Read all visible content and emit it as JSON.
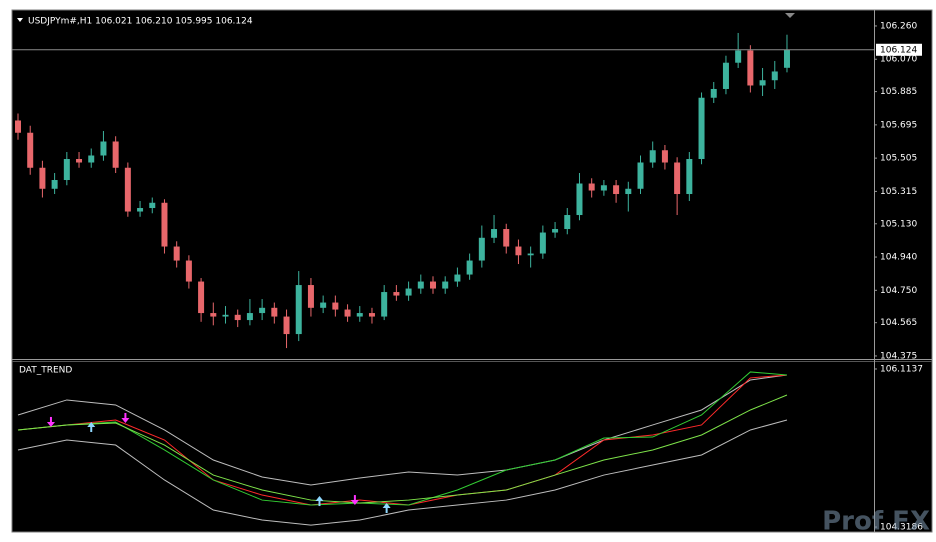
{
  "chart_data": [
    {
      "type": "candlestick",
      "title": "USDJPYm#,H1  106.021 106.210 105.995 106.124",
      "open": [
        105.72,
        105.65,
        105.45,
        105.33,
        105.38,
        105.5,
        105.48,
        105.52,
        105.6,
        105.45,
        105.2,
        105.22,
        105.25,
        105.0,
        104.92,
        104.8,
        104.62,
        104.6,
        104.61,
        104.58,
        104.62,
        104.65,
        104.6,
        104.5,
        104.78,
        104.65,
        104.68,
        104.64,
        104.6,
        104.62,
        104.6,
        104.74,
        104.72,
        104.76,
        104.8,
        104.76,
        104.8,
        104.84,
        104.92,
        105.05,
        105.1,
        105.0,
        104.95,
        104.96,
        105.08,
        105.1,
        105.18,
        105.36,
        105.32,
        105.35,
        105.3,
        105.33,
        105.48,
        105.55,
        105.48,
        105.3,
        105.5,
        105.85,
        105.9,
        106.05,
        106.12,
        105.92,
        105.95,
        106.021
      ],
      "high": [
        105.76,
        105.69,
        105.49,
        105.42,
        105.54,
        105.54,
        105.56,
        105.66,
        105.63,
        105.48,
        105.26,
        105.28,
        105.27,
        105.03,
        104.95,
        104.82,
        104.68,
        104.66,
        104.64,
        104.7,
        104.7,
        104.68,
        104.64,
        104.86,
        104.82,
        104.72,
        104.72,
        104.67,
        104.66,
        104.65,
        104.78,
        104.78,
        104.8,
        104.84,
        104.83,
        104.83,
        104.88,
        104.96,
        105.12,
        105.18,
        105.13,
        105.04,
        105.0,
        105.12,
        105.14,
        105.22,
        105.42,
        105.39,
        105.38,
        105.38,
        105.37,
        105.52,
        105.6,
        105.58,
        105.51,
        105.54,
        105.88,
        105.94,
        106.09,
        106.22,
        106.15,
        106.02,
        106.06,
        106.21
      ],
      "low": [
        105.61,
        105.41,
        105.28,
        105.3,
        105.35,
        105.45,
        105.45,
        105.49,
        105.42,
        105.17,
        105.17,
        105.19,
        104.96,
        104.88,
        104.76,
        104.57,
        104.55,
        104.56,
        104.54,
        104.55,
        104.58,
        104.56,
        104.42,
        104.46,
        104.6,
        104.62,
        104.6,
        104.57,
        104.57,
        104.56,
        104.58,
        104.69,
        104.69,
        104.73,
        104.73,
        104.73,
        104.77,
        104.81,
        104.88,
        105.02,
        104.96,
        104.9,
        104.88,
        104.93,
        105.05,
        105.07,
        105.15,
        105.28,
        105.29,
        105.25,
        105.2,
        105.3,
        105.45,
        105.44,
        105.18,
        105.26,
        105.47,
        105.82,
        105.87,
        106.02,
        105.88,
        105.86,
        105.9,
        105.995
      ],
      "close": [
        105.65,
        105.45,
        105.33,
        105.38,
        105.5,
        105.48,
        105.52,
        105.6,
        105.45,
        105.2,
        105.22,
        105.25,
        105.0,
        104.92,
        104.8,
        104.62,
        104.6,
        104.61,
        104.58,
        104.62,
        104.65,
        104.6,
        104.5,
        104.78,
        104.65,
        104.68,
        104.64,
        104.6,
        104.62,
        104.6,
        104.74,
        104.72,
        104.76,
        104.8,
        104.76,
        104.8,
        104.84,
        104.92,
        105.05,
        105.1,
        105.0,
        104.95,
        104.96,
        105.08,
        105.1,
        105.18,
        105.36,
        105.32,
        105.35,
        105.3,
        105.33,
        105.48,
        105.55,
        105.48,
        105.3,
        105.5,
        105.85,
        105.9,
        106.05,
        106.12,
        105.92,
        105.95,
        106.0,
        106.124
      ],
      "up_color": "#3db39e",
      "down_color": "#e8676b",
      "ylim": [
        104.369,
        106.334
      ],
      "yticks": [
        {
          "value": 106.26,
          "label": "106.260"
        },
        {
          "value": 106.07,
          "label": "106.070"
        },
        105.885,
        105.695,
        105.505,
        105.315,
        {
          "value": 105.13,
          "label": "105.130"
        },
        {
          "value": 104.94,
          "label": "104.940"
        },
        {
          "value": 104.75,
          "label": "104.750"
        },
        104.565,
        104.375
      ],
      "price_line": 106.124
    },
    {
      "type": "line",
      "title": "DAT_TREND",
      "x": [
        0,
        4,
        8,
        12,
        16,
        20,
        24,
        28,
        32,
        36,
        40,
        44,
        48,
        52,
        56,
        60,
        63
      ],
      "series": [
        {
          "color": "#bdbdbd",
          "values": [
            105.591,
            105.762,
            105.705,
            105.421,
            105.08,
            104.887,
            104.796,
            104.875,
            104.944,
            104.909,
            104.966,
            105.08,
            105.307,
            105.478,
            105.648,
            105.989,
            106.046
          ]
        },
        {
          "color": "#bdbdbd",
          "values": [
            105.194,
            105.307,
            105.25,
            104.853,
            104.512,
            104.398,
            104.341,
            104.398,
            104.512,
            104.569,
            104.625,
            104.739,
            104.909,
            105.023,
            105.137,
            105.421,
            105.534
          ]
        },
        {
          "color": "#ff2a2a",
          "values": [
            105.421,
            105.478,
            105.534,
            105.307,
            104.853,
            104.682,
            104.569,
            104.625,
            104.569,
            104.682,
            104.739,
            104.909,
            105.307,
            105.364,
            105.478,
            106.012,
            106.046
          ]
        },
        {
          "color": "#33cc33",
          "values": [
            105.421,
            105.478,
            105.512,
            105.194,
            104.853,
            104.625,
            104.569,
            104.591,
            104.569,
            104.739,
            104.966,
            105.08,
            105.33,
            105.341,
            105.591,
            106.08,
            106.046
          ]
        },
        {
          "color": "#7ee34a",
          "values": [
            105.421,
            105.478,
            105.5,
            105.25,
            104.909,
            104.739,
            104.625,
            104.591,
            104.625,
            104.682,
            104.739,
            104.909,
            105.08,
            105.194,
            105.364,
            105.648,
            105.818
          ]
        }
      ],
      "markers": [
        {
          "x": 2.7,
          "value": 105.478,
          "direction": "down",
          "color": "#ff33ff"
        },
        {
          "x": 6.0,
          "value": 105.489,
          "direction": "up",
          "color": "#8fd8ff"
        },
        {
          "x": 8.8,
          "value": 105.523,
          "direction": "down",
          "color": "#ff33ff"
        },
        {
          "x": 24.7,
          "value": 104.648,
          "direction": "up",
          "color": "#8fd8ff"
        },
        {
          "x": 27.6,
          "value": 104.591,
          "direction": "down",
          "color": "#ff33ff"
        },
        {
          "x": 30.2,
          "value": 104.569,
          "direction": "up",
          "color": "#8fd8ff"
        }
      ],
      "ylim": [
        104.285,
        106.193
      ],
      "yticks": [
        106.1137,
        104.3186
      ]
    }
  ],
  "watermark": "Prof FX"
}
